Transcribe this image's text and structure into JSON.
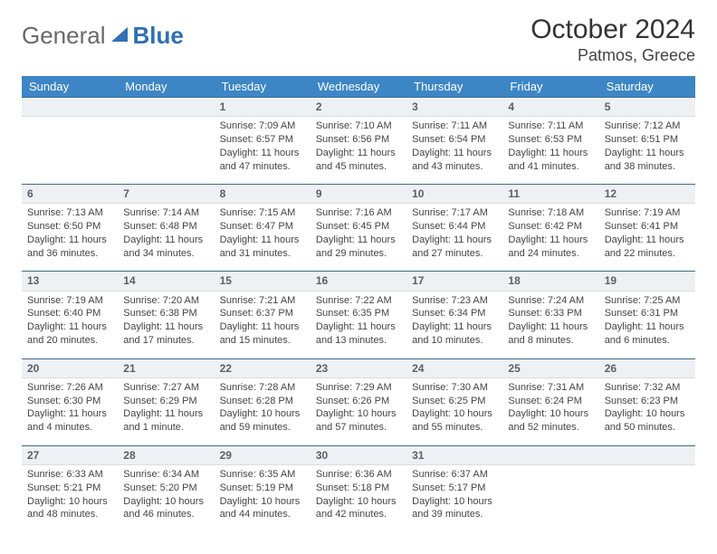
{
  "brand": {
    "part1": "General",
    "part2": "Blue"
  },
  "title": "October 2024",
  "location": "Patmos, Greece",
  "colors": {
    "header_bg": "#3d86c6",
    "header_text": "#ffffff",
    "daynum_bg": "#eef1f3",
    "rule": "#3d6a93"
  },
  "day_headers": [
    "Sunday",
    "Monday",
    "Tuesday",
    "Wednesday",
    "Thursday",
    "Friday",
    "Saturday"
  ],
  "weeks": [
    [
      null,
      null,
      {
        "n": "1",
        "sr": "Sunrise: 7:09 AM",
        "ss": "Sunset: 6:57 PM",
        "dl": "Daylight: 11 hours and 47 minutes."
      },
      {
        "n": "2",
        "sr": "Sunrise: 7:10 AM",
        "ss": "Sunset: 6:56 PM",
        "dl": "Daylight: 11 hours and 45 minutes."
      },
      {
        "n": "3",
        "sr": "Sunrise: 7:11 AM",
        "ss": "Sunset: 6:54 PM",
        "dl": "Daylight: 11 hours and 43 minutes."
      },
      {
        "n": "4",
        "sr": "Sunrise: 7:11 AM",
        "ss": "Sunset: 6:53 PM",
        "dl": "Daylight: 11 hours and 41 minutes."
      },
      {
        "n": "5",
        "sr": "Sunrise: 7:12 AM",
        "ss": "Sunset: 6:51 PM",
        "dl": "Daylight: 11 hours and 38 minutes."
      }
    ],
    [
      {
        "n": "6",
        "sr": "Sunrise: 7:13 AM",
        "ss": "Sunset: 6:50 PM",
        "dl": "Daylight: 11 hours and 36 minutes."
      },
      {
        "n": "7",
        "sr": "Sunrise: 7:14 AM",
        "ss": "Sunset: 6:48 PM",
        "dl": "Daylight: 11 hours and 34 minutes."
      },
      {
        "n": "8",
        "sr": "Sunrise: 7:15 AM",
        "ss": "Sunset: 6:47 PM",
        "dl": "Daylight: 11 hours and 31 minutes."
      },
      {
        "n": "9",
        "sr": "Sunrise: 7:16 AM",
        "ss": "Sunset: 6:45 PM",
        "dl": "Daylight: 11 hours and 29 minutes."
      },
      {
        "n": "10",
        "sr": "Sunrise: 7:17 AM",
        "ss": "Sunset: 6:44 PM",
        "dl": "Daylight: 11 hours and 27 minutes."
      },
      {
        "n": "11",
        "sr": "Sunrise: 7:18 AM",
        "ss": "Sunset: 6:42 PM",
        "dl": "Daylight: 11 hours and 24 minutes."
      },
      {
        "n": "12",
        "sr": "Sunrise: 7:19 AM",
        "ss": "Sunset: 6:41 PM",
        "dl": "Daylight: 11 hours and 22 minutes."
      }
    ],
    [
      {
        "n": "13",
        "sr": "Sunrise: 7:19 AM",
        "ss": "Sunset: 6:40 PM",
        "dl": "Daylight: 11 hours and 20 minutes."
      },
      {
        "n": "14",
        "sr": "Sunrise: 7:20 AM",
        "ss": "Sunset: 6:38 PM",
        "dl": "Daylight: 11 hours and 17 minutes."
      },
      {
        "n": "15",
        "sr": "Sunrise: 7:21 AM",
        "ss": "Sunset: 6:37 PM",
        "dl": "Daylight: 11 hours and 15 minutes."
      },
      {
        "n": "16",
        "sr": "Sunrise: 7:22 AM",
        "ss": "Sunset: 6:35 PM",
        "dl": "Daylight: 11 hours and 13 minutes."
      },
      {
        "n": "17",
        "sr": "Sunrise: 7:23 AM",
        "ss": "Sunset: 6:34 PM",
        "dl": "Daylight: 11 hours and 10 minutes."
      },
      {
        "n": "18",
        "sr": "Sunrise: 7:24 AM",
        "ss": "Sunset: 6:33 PM",
        "dl": "Daylight: 11 hours and 8 minutes."
      },
      {
        "n": "19",
        "sr": "Sunrise: 7:25 AM",
        "ss": "Sunset: 6:31 PM",
        "dl": "Daylight: 11 hours and 6 minutes."
      }
    ],
    [
      {
        "n": "20",
        "sr": "Sunrise: 7:26 AM",
        "ss": "Sunset: 6:30 PM",
        "dl": "Daylight: 11 hours and 4 minutes."
      },
      {
        "n": "21",
        "sr": "Sunrise: 7:27 AM",
        "ss": "Sunset: 6:29 PM",
        "dl": "Daylight: 11 hours and 1 minute."
      },
      {
        "n": "22",
        "sr": "Sunrise: 7:28 AM",
        "ss": "Sunset: 6:28 PM",
        "dl": "Daylight: 10 hours and 59 minutes."
      },
      {
        "n": "23",
        "sr": "Sunrise: 7:29 AM",
        "ss": "Sunset: 6:26 PM",
        "dl": "Daylight: 10 hours and 57 minutes."
      },
      {
        "n": "24",
        "sr": "Sunrise: 7:30 AM",
        "ss": "Sunset: 6:25 PM",
        "dl": "Daylight: 10 hours and 55 minutes."
      },
      {
        "n": "25",
        "sr": "Sunrise: 7:31 AM",
        "ss": "Sunset: 6:24 PM",
        "dl": "Daylight: 10 hours and 52 minutes."
      },
      {
        "n": "26",
        "sr": "Sunrise: 7:32 AM",
        "ss": "Sunset: 6:23 PM",
        "dl": "Daylight: 10 hours and 50 minutes."
      }
    ],
    [
      {
        "n": "27",
        "sr": "Sunrise: 6:33 AM",
        "ss": "Sunset: 5:21 PM",
        "dl": "Daylight: 10 hours and 48 minutes."
      },
      {
        "n": "28",
        "sr": "Sunrise: 6:34 AM",
        "ss": "Sunset: 5:20 PM",
        "dl": "Daylight: 10 hours and 46 minutes."
      },
      {
        "n": "29",
        "sr": "Sunrise: 6:35 AM",
        "ss": "Sunset: 5:19 PM",
        "dl": "Daylight: 10 hours and 44 minutes."
      },
      {
        "n": "30",
        "sr": "Sunrise: 6:36 AM",
        "ss": "Sunset: 5:18 PM",
        "dl": "Daylight: 10 hours and 42 minutes."
      },
      {
        "n": "31",
        "sr": "Sunrise: 6:37 AM",
        "ss": "Sunset: 5:17 PM",
        "dl": "Daylight: 10 hours and 39 minutes."
      },
      null,
      null
    ]
  ]
}
